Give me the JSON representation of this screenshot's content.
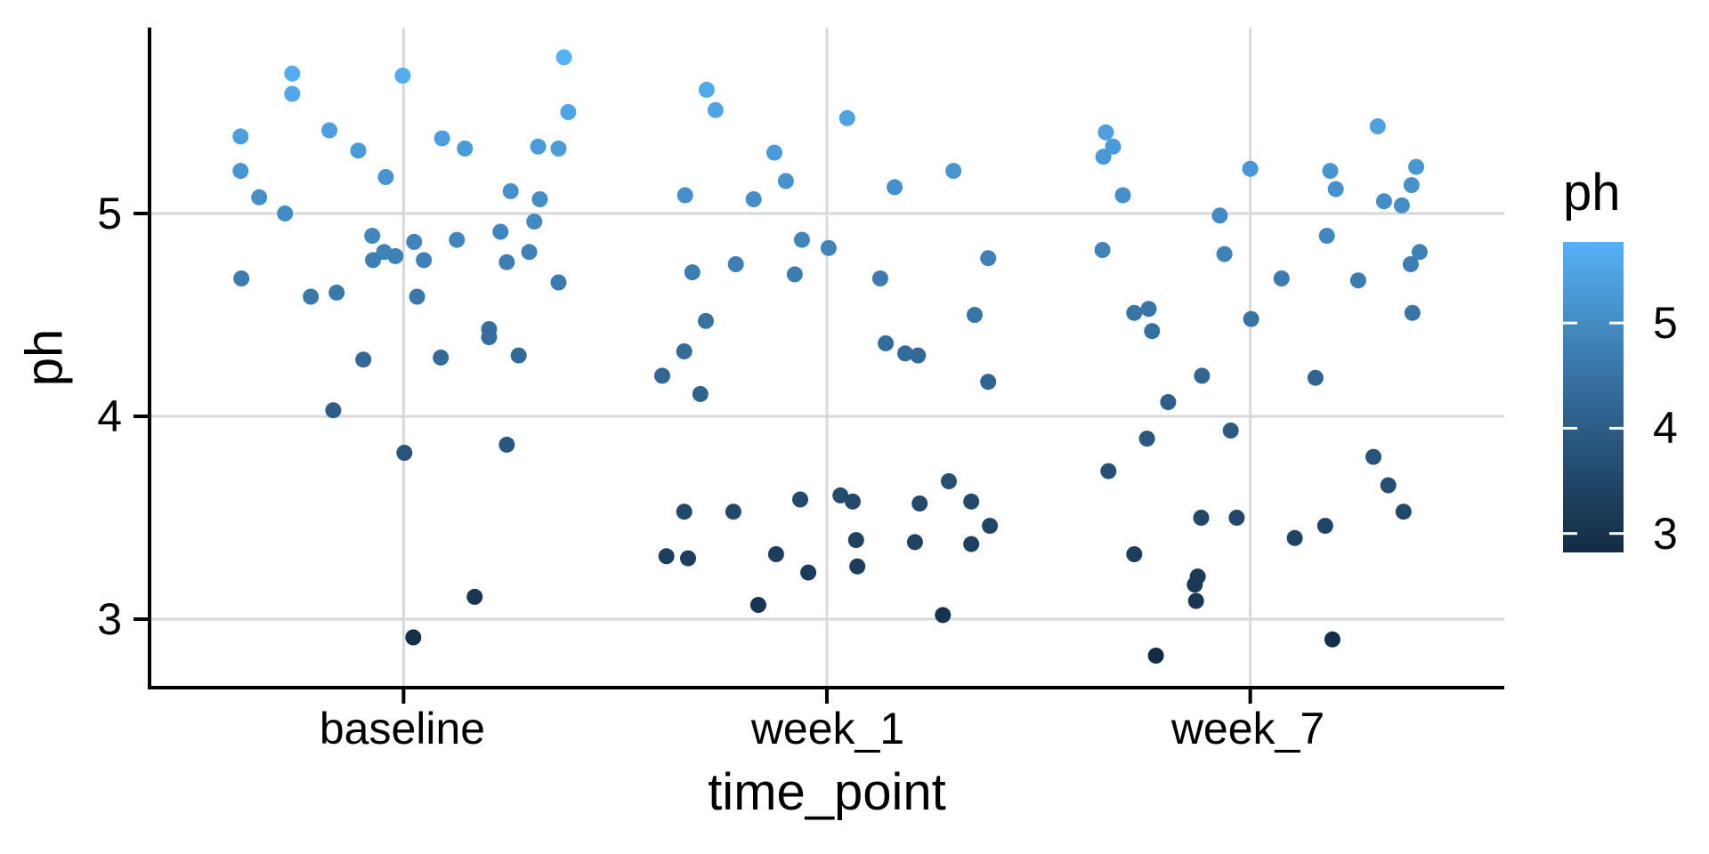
{
  "chart_data": {
    "type": "scatter",
    "variant": "jittered-categorical",
    "title": "",
    "xlabel": "time_point",
    "ylabel": "ph",
    "categories": [
      "baseline",
      "week_1",
      "week_7"
    ],
    "x_tick_labels": [
      "baseline",
      "week_1",
      "week_7"
    ],
    "y_ticks": [
      5,
      4,
      3
    ],
    "y_tick_labels": [
      "5",
      "4",
      "3"
    ],
    "ylim": [
      2.66,
      5.92
    ],
    "xlim_units": [
      0.4,
      3.6
    ],
    "grid": "major-only",
    "legend_position": "right",
    "colors": {
      "gridline": "#D9D9D9",
      "axis_line": "#000000",
      "text": "#000000",
      "background": "#FFFFFF",
      "gradient_low": "#132B43",
      "gradient_high": "#56B1F7"
    },
    "legend": {
      "title": "ph",
      "ticks": [
        5,
        4,
        3
      ],
      "tick_labels": [
        "5",
        "4",
        "3"
      ],
      "domain": [
        2.82,
        5.77
      ]
    },
    "series": [
      {
        "name": "baseline",
        "x_center": 1,
        "points": [
          [
            0.737,
            5.69
          ],
          [
            0.737,
            5.59
          ],
          [
            0.998,
            5.68
          ],
          [
            1.379,
            5.77
          ],
          [
            0.825,
            5.41
          ],
          [
            0.615,
            5.38
          ],
          [
            1.389,
            5.5
          ],
          [
            1.091,
            5.37
          ],
          [
            1.145,
            5.32
          ],
          [
            0.893,
            5.31
          ],
          [
            1.318,
            5.33
          ],
          [
            1.366,
            5.32
          ],
          [
            0.615,
            5.21
          ],
          [
            0.958,
            5.18
          ],
          [
            1.253,
            5.11
          ],
          [
            1.322,
            5.07
          ],
          [
            0.659,
            5.08
          ],
          [
            0.72,
            5.0
          ],
          [
            1.309,
            4.96
          ],
          [
            0.926,
            4.89
          ],
          [
            1.229,
            4.91
          ],
          [
            1.126,
            4.87
          ],
          [
            1.025,
            4.86
          ],
          [
            0.954,
            4.81
          ],
          [
            0.981,
            4.79
          ],
          [
            0.928,
            4.77
          ],
          [
            1.048,
            4.77
          ],
          [
            1.244,
            4.76
          ],
          [
            1.297,
            4.81
          ],
          [
            0.617,
            4.68
          ],
          [
            1.366,
            4.66
          ],
          [
            0.781,
            4.59
          ],
          [
            0.842,
            4.61
          ],
          [
            1.032,
            4.59
          ],
          [
            1.202,
            4.43
          ],
          [
            1.202,
            4.39
          ],
          [
            0.905,
            4.28
          ],
          [
            1.088,
            4.29
          ],
          [
            1.272,
            4.3
          ],
          [
            0.834,
            4.03
          ],
          [
            1.002,
            3.82
          ],
          [
            1.244,
            3.86
          ],
          [
            1.168,
            3.11
          ],
          [
            1.023,
            2.91
          ]
        ]
      },
      {
        "name": "week_1",
        "x_center": 2,
        "points": [
          [
            1.716,
            5.61
          ],
          [
            1.737,
            5.51
          ],
          [
            2.048,
            5.47
          ],
          [
            1.876,
            5.3
          ],
          [
            1.903,
            5.16
          ],
          [
            2.299,
            5.21
          ],
          [
            2.16,
            5.13
          ],
          [
            1.665,
            5.09
          ],
          [
            1.827,
            5.07
          ],
          [
            1.941,
            4.87
          ],
          [
            2.004,
            4.83
          ],
          [
            2.381,
            4.78
          ],
          [
            1.785,
            4.75
          ],
          [
            1.682,
            4.71
          ],
          [
            1.924,
            4.7
          ],
          [
            2.126,
            4.68
          ],
          [
            2.349,
            4.5
          ],
          [
            1.714,
            4.47
          ],
          [
            2.139,
            4.36
          ],
          [
            1.663,
            4.32
          ],
          [
            2.185,
            4.31
          ],
          [
            2.215,
            4.3
          ],
          [
            1.611,
            4.2
          ],
          [
            1.701,
            4.11
          ],
          [
            2.381,
            4.17
          ],
          [
            1.937,
            3.59
          ],
          [
            2.032,
            3.61
          ],
          [
            2.061,
            3.58
          ],
          [
            1.663,
            3.53
          ],
          [
            1.779,
            3.53
          ],
          [
            2.288,
            3.68
          ],
          [
            2.219,
            3.57
          ],
          [
            2.341,
            3.58
          ],
          [
            2.385,
            3.46
          ],
          [
            2.069,
            3.39
          ],
          [
            2.208,
            3.38
          ],
          [
            2.341,
            3.37
          ],
          [
            1.621,
            3.31
          ],
          [
            1.672,
            3.3
          ],
          [
            1.88,
            3.32
          ],
          [
            1.956,
            3.23
          ],
          [
            2.072,
            3.26
          ],
          [
            1.838,
            3.07
          ],
          [
            2.274,
            3.02
          ]
        ]
      },
      {
        "name": "week_7",
        "x_center": 3,
        "points": [
          [
            2.659,
            5.4
          ],
          [
            2.676,
            5.33
          ],
          [
            2.653,
            5.28
          ],
          [
            3.0,
            5.22
          ],
          [
            3.301,
            5.43
          ],
          [
            3.189,
            5.21
          ],
          [
            3.392,
            5.23
          ],
          [
            3.202,
            5.12
          ],
          [
            3.381,
            5.14
          ],
          [
            2.699,
            5.09
          ],
          [
            3.316,
            5.06
          ],
          [
            3.358,
            5.04
          ],
          [
            2.928,
            4.99
          ],
          [
            3.181,
            4.89
          ],
          [
            2.651,
            4.82
          ],
          [
            2.939,
            4.8
          ],
          [
            3.4,
            4.81
          ],
          [
            3.379,
            4.75
          ],
          [
            3.074,
            4.68
          ],
          [
            3.255,
            4.67
          ],
          [
            2.726,
            4.51
          ],
          [
            2.76,
            4.53
          ],
          [
            3.002,
            4.48
          ],
          [
            3.383,
            4.51
          ],
          [
            2.768,
            4.42
          ],
          [
            2.886,
            4.2
          ],
          [
            3.154,
            4.19
          ],
          [
            2.806,
            4.07
          ],
          [
            2.954,
            3.93
          ],
          [
            2.756,
            3.89
          ],
          [
            3.291,
            3.8
          ],
          [
            2.665,
            3.73
          ],
          [
            3.326,
            3.66
          ],
          [
            3.362,
            3.53
          ],
          [
            2.884,
            3.5
          ],
          [
            2.968,
            3.5
          ],
          [
            3.177,
            3.46
          ],
          [
            3.105,
            3.4
          ],
          [
            2.726,
            3.32
          ],
          [
            2.876,
            3.21
          ],
          [
            2.869,
            3.17
          ],
          [
            2.872,
            3.09
          ],
          [
            3.194,
            2.9
          ],
          [
            2.777,
            2.82
          ]
        ]
      }
    ]
  }
}
